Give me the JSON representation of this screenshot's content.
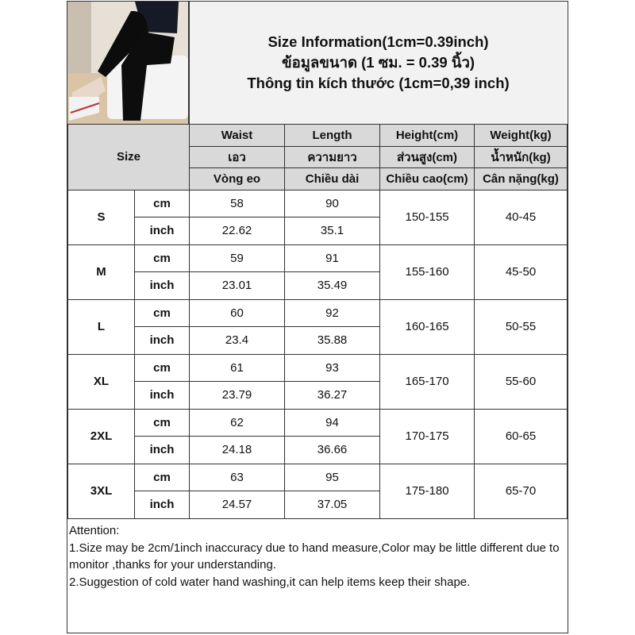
{
  "header": {
    "title_lines": [
      "Size Information(1cm=0.39inch)",
      "ข้อมูลขนาด (1 ซม. = 0.39 นิ้ว)",
      "Thông tin kích thước (1cm=0,39 inch)"
    ],
    "photo": "product-photo-black-jogger-pants"
  },
  "table": {
    "size_label": "Size",
    "columns": [
      {
        "en": "Waist",
        "th": "เอว",
        "vi": "Vòng eo"
      },
      {
        "en": "Length",
        "th": "ความยาว",
        "vi": "Chiều dài"
      },
      {
        "en": "Height(cm)",
        "th": "ส่วนสูง(cm)",
        "vi": "Chiều cao(cm)"
      },
      {
        "en": "Weight(kg)",
        "th": "น้ำหนัก(kg)",
        "vi": "Cân nặng(kg)"
      }
    ],
    "unit_cm": "cm",
    "unit_inch": "inch",
    "rows": [
      {
        "size": "S",
        "waist_cm": "58",
        "length_cm": "90",
        "waist_in": "22.62",
        "length_in": "35.1",
        "height": "150-155",
        "weight": "40-45"
      },
      {
        "size": "M",
        "waist_cm": "59",
        "length_cm": "91",
        "waist_in": "23.01",
        "length_in": "35.49",
        "height": "155-160",
        "weight": "45-50"
      },
      {
        "size": "L",
        "waist_cm": "60",
        "length_cm": "92",
        "waist_in": "23.4",
        "length_in": "35.88",
        "height": "160-165",
        "weight": "50-55"
      },
      {
        "size": "XL",
        "waist_cm": "61",
        "length_cm": "93",
        "waist_in": "23.79",
        "length_in": "36.27",
        "height": "165-170",
        "weight": "55-60"
      },
      {
        "size": "2XL",
        "waist_cm": "62",
        "length_cm": "94",
        "waist_in": "24.18",
        "length_in": "36.66",
        "height": "170-175",
        "weight": "60-65"
      },
      {
        "size": "3XL",
        "waist_cm": "63",
        "length_cm": "95",
        "waist_in": "24.57",
        "length_in": "37.05",
        "height": "175-180",
        "weight": "65-70"
      }
    ]
  },
  "attention": {
    "heading": "Attention:",
    "lines": [
      "1.Size may be 2cm/1inch inaccuracy due to hand measure,Color may be little different due to monitor ,thanks for your understanding.",
      "2.Suggestion of cold water hand washing,it can help items keep their shape."
    ]
  }
}
